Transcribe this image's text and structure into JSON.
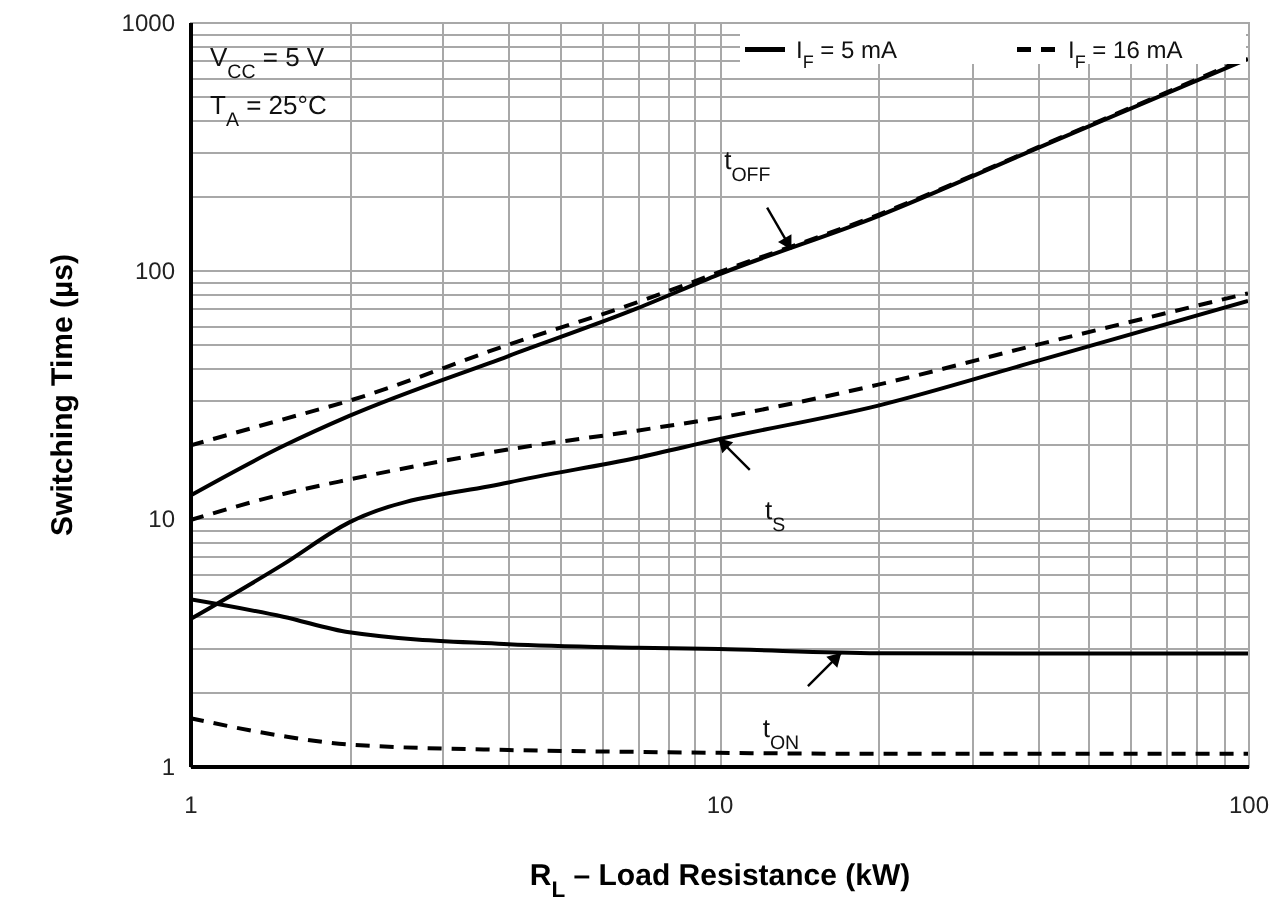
{
  "chart_data": {
    "type": "line",
    "xlabel": "R$_{L}$ – Load Resistance (kW)",
    "ylabel": "Switching Time (µs)",
    "x": [
      1,
      1.5,
      2,
      4,
      7,
      10,
      20,
      40,
      100
    ],
    "series": [
      {
        "name": "I$_{F}$ = 5 mA",
        "color": "#000000",
        "line_style": "solid",
        "values": [
          12.3,
          19.5,
          25.8,
          45,
          70,
          96,
          165,
          310,
          710
        ]
      },
      {
        "name": "I$_{F}$ = 16 mA",
        "color": "#000000",
        "line_style": "dashed",
        "values": [
          19.6,
          25,
          29.7,
          50,
          74,
          98,
          167,
          312,
          720
        ]
      },
      {
        "color": "#000000",
        "line_style": "solid",
        "values": [
          3.9,
          6.5,
          9.6,
          13.9,
          17.5,
          20.8,
          28.4,
          43,
          75
        ]
      },
      {
        "color": "#000000",
        "line_style": "dashed",
        "values": [
          9.8,
          12.5,
          14.3,
          18.9,
          22.5,
          25.4,
          34.5,
          50,
          80.5
        ]
      },
      {
        "color": "#000000",
        "line_style": "solid",
        "values": [
          4.7,
          4.0,
          3.46,
          3.1,
          3.0,
          2.96,
          2.85,
          2.84,
          2.84
        ]
      },
      {
        "color": "#000000",
        "line_style": "dashed",
        "values": [
          1.56,
          1.32,
          1.22,
          1.16,
          1.14,
          1.13,
          1.12,
          1.12,
          1.12
        ]
      }
    ],
    "log": "xy",
    "xlim": [
      1,
      100
    ],
    "ylim": [
      1,
      1000
    ],
    "xticks": [
      1,
      {
        "value": 2,
        "label": null
      },
      {
        "value": 3,
        "label": null
      },
      {
        "value": 4,
        "label": null
      },
      {
        "value": 5,
        "label": null
      },
      {
        "value": 6,
        "label": null
      },
      {
        "value": 7,
        "label": null
      },
      {
        "value": 8,
        "label": null
      },
      {
        "value": 9,
        "label": null
      },
      10,
      {
        "value": 20,
        "label": null
      },
      {
        "value": 30,
        "label": null
      },
      {
        "value": 40,
        "label": null
      },
      {
        "value": 50,
        "label": null
      },
      {
        "value": 60,
        "label": null
      },
      {
        "value": 70,
        "label": null
      },
      {
        "value": 80,
        "label": null
      },
      {
        "value": 90,
        "label": null
      },
      100
    ],
    "yticks": [
      1,
      {
        "value": 2,
        "label": null
      },
      {
        "value": 3,
        "label": null
      },
      {
        "value": 4,
        "label": null
      },
      {
        "value": 5,
        "label": null
      },
      {
        "value": 6,
        "label": null
      },
      {
        "value": 7,
        "label": null
      },
      {
        "value": 8,
        "label": null
      },
      {
        "value": 9,
        "label": null
      },
      10,
      {
        "value": 20,
        "label": null
      },
      {
        "value": 30,
        "label": null
      },
      {
        "value": 40,
        "label": null
      },
      {
        "value": 50,
        "label": null
      },
      {
        "value": 60,
        "label": null
      },
      {
        "value": 70,
        "label": null
      },
      {
        "value": 80,
        "label": null
      },
      {
        "value": 90,
        "label": null
      },
      100,
      {
        "value": 200,
        "label": null
      },
      {
        "value": 300,
        "label": null
      },
      {
        "value": 400,
        "label": null
      },
      {
        "value": 500,
        "label": null
      },
      {
        "value": 600,
        "label": null
      },
      {
        "value": 700,
        "label": null
      },
      {
        "value": 800,
        "label": null
      },
      {
        "value": 900,
        "label": null
      },
      1000
    ],
    "grid": true,
    "legend": "top right",
    "annotations": [
      "V$_{CC}$ = 5 V",
      "T$_{A}$ = 25°C",
      {
        "text": "t$_{OFF}$",
        "x": 13.7,
        "y": 121
      },
      {
        "text": "t$_{S}$",
        "x": 10,
        "y": 20.8
      },
      {
        "text": "t$_{ON}$",
        "x": 17,
        "y": 2.85
      }
    ]
  }
}
